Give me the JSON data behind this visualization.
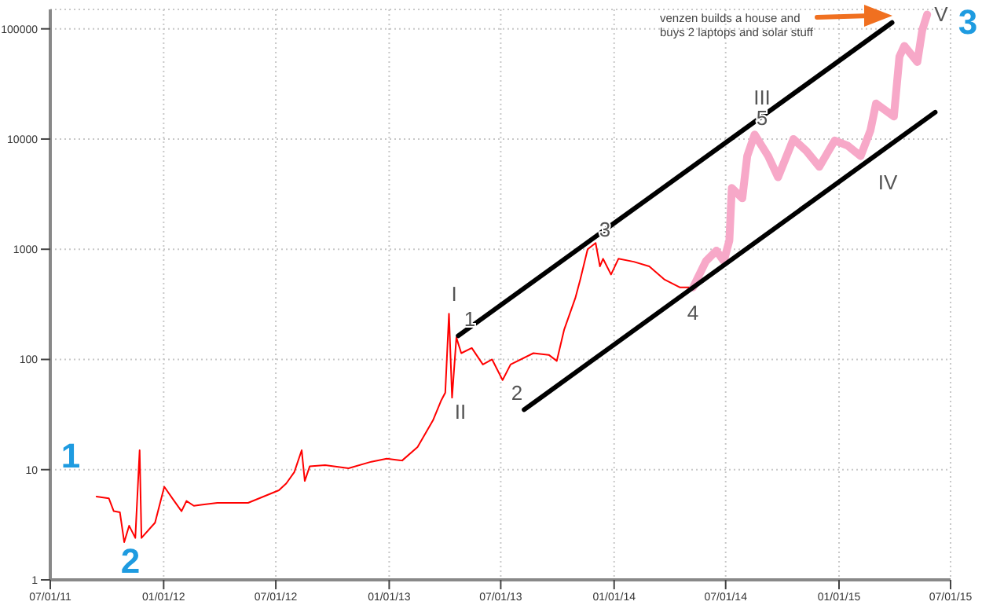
{
  "chart_data": {
    "type": "line",
    "log": "y",
    "grid": true,
    "legend": false,
    "marker": "none",
    "line_style": "solid",
    "xlim": [
      "2011-07-01",
      "2015-07-01"
    ],
    "xticks": [
      {
        "value": "2011-07-01",
        "label": "07/01/11"
      },
      {
        "value": "2012-01-01",
        "label": "01/01/12"
      },
      {
        "value": "2012-07-01",
        "label": "07/01/12"
      },
      {
        "value": "2013-01-01",
        "label": "01/01/13"
      },
      {
        "value": "2013-07-01",
        "label": "07/01/13"
      },
      {
        "value": "2014-01-01",
        "label": "01/01/14"
      },
      {
        "value": "2014-07-01",
        "label": "07/01/14"
      },
      {
        "value": "2015-01-01",
        "label": "01/01/15"
      },
      {
        "value": "2015-07-01",
        "label": "07/01/15"
      }
    ],
    "ylim": [
      1,
      150000
    ],
    "yticks": [
      1,
      10,
      100,
      1000,
      10000,
      100000
    ],
    "series": [
      {
        "color": "#ff0000",
        "x": [
          "2011-09-14",
          "2011-10-04",
          "2011-10-12",
          "2011-10-22",
          "2011-10-29",
          "2011-11-06",
          "2011-11-16",
          "2011-11-23",
          "2011-11-26",
          "2011-12-18",
          "2012-01-02",
          "2012-01-17",
          "2012-01-30",
          "2012-02-07",
          "2012-02-19",
          "2012-03-28",
          "2012-05-17",
          "2012-06-11",
          "2012-07-06",
          "2012-07-18",
          "2012-07-31",
          "2012-08-12",
          "2012-08-17",
          "2012-08-25",
          "2012-09-19",
          "2012-10-27",
          "2012-12-03",
          "2012-12-28",
          "2013-01-22",
          "2013-02-16",
          "2013-03-13",
          "2013-03-26",
          "2013-04-02",
          "2013-04-08",
          "2013-04-13",
          "2013-04-20",
          "2013-04-28",
          "2013-05-15",
          "2013-06-02",
          "2013-06-17",
          "2013-07-04",
          "2013-07-17",
          "2013-08-23",
          "2013-09-17",
          "2013-09-30",
          "2013-10-12",
          "2013-10-30",
          "2013-11-07",
          "2013-11-19",
          "2013-12-02",
          "2013-12-09",
          "2013-12-14",
          "2013-12-27",
          "2014-01-08",
          "2014-02-02",
          "2014-02-27",
          "2014-03-24",
          "2014-04-18",
          "2014-05-09"
        ],
        "values": [
          5.7,
          5.5,
          4.2,
          4.1,
          2.2,
          3.1,
          2.4,
          15,
          2.4,
          3.3,
          7,
          5.3,
          4.2,
          5.2,
          4.7,
          5,
          5,
          5.7,
          6.5,
          7.5,
          9.5,
          15,
          7.9,
          10.7,
          11,
          10.3,
          11.8,
          12.6,
          12.1,
          16,
          28,
          42,
          50,
          260,
          45,
          158,
          114,
          127,
          90,
          100,
          65,
          90,
          114,
          110,
          97,
          187,
          360,
          530,
          1000,
          1140,
          700,
          820,
          590,
          820,
          770,
          700,
          530,
          450,
          450
        ]
      },
      {
        "color": "#f7a8c8",
        "x": [
          "2014-05-09",
          "2014-05-30",
          "2014-06-16",
          "2014-06-28",
          "2014-07-07",
          "2014-07-11",
          "2014-07-28",
          "2014-08-05",
          "2014-08-17",
          "2014-09-08",
          "2014-09-24",
          "2014-10-19",
          "2014-11-09",
          "2014-11-30",
          "2014-12-25",
          "2015-01-15",
          "2015-02-05",
          "2015-02-21",
          "2015-03-02",
          "2015-03-31",
          "2015-04-09",
          "2015-04-17",
          "2015-05-08",
          "2015-05-16",
          "2015-05-24"
        ],
        "values": [
          450,
          780,
          970,
          780,
          1200,
          3600,
          2900,
          7000,
          11000,
          7000,
          4500,
          10000,
          7800,
          5600,
          9700,
          8700,
          7000,
          12000,
          21000,
          16000,
          56000,
          70000,
          50000,
          97000,
          135000
        ]
      },
      {
        "color": "#000000",
        "x": [
          "2013-04-23",
          "2015-03-28"
        ],
        "values": [
          164,
          114000
        ]
      },
      {
        "color": "#000000",
        "x": [
          "2013-08-08",
          "2015-06-06"
        ],
        "values": [
          35,
          17500
        ]
      }
    ],
    "annotations": [
      "venzen builds a house and buys 2 laptops and solar stuff",
      "I",
      "1",
      "II",
      "2",
      "3",
      "4",
      "III",
      "5",
      "IV",
      "V",
      "1",
      "2",
      "3"
    ]
  }
}
